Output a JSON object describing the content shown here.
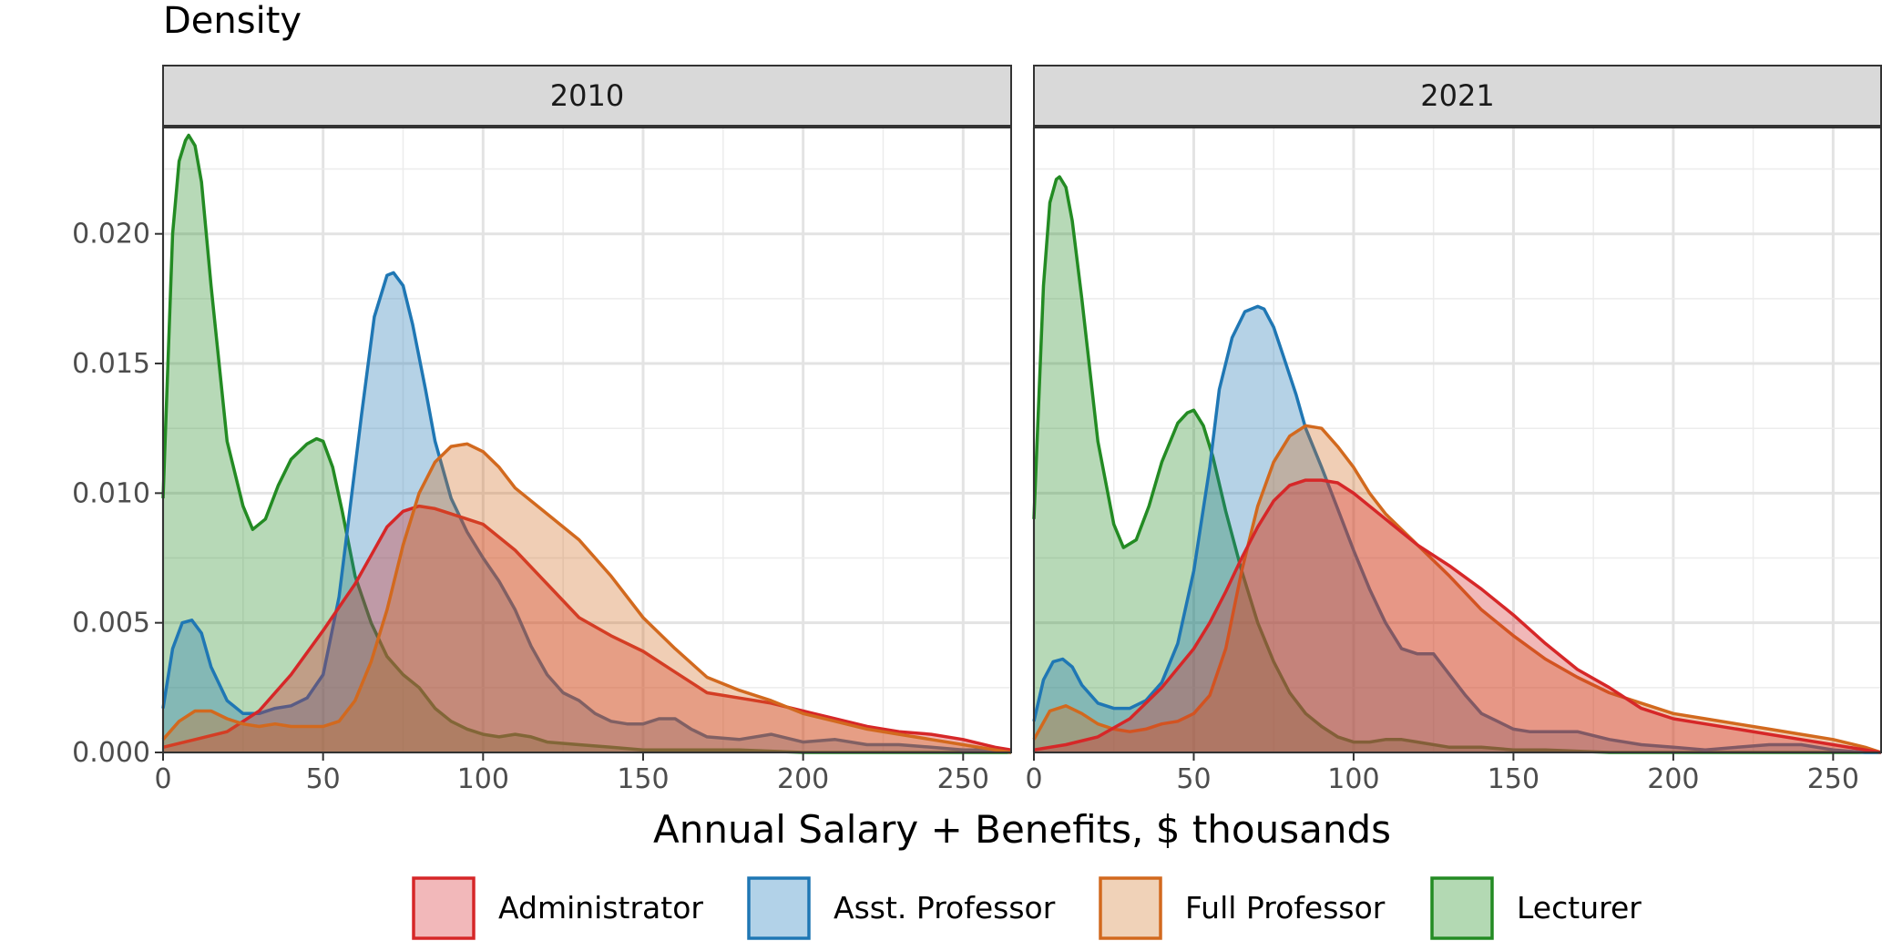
{
  "chart_data": {
    "type": "area",
    "ylabel": "Density",
    "xlabel": "Annual Salary + Benefits, $ thousands",
    "xlim": [
      0,
      265
    ],
    "ylim": [
      0,
      0.0241
    ],
    "x_ticks": [
      0,
      50,
      100,
      150,
      200,
      250
    ],
    "y_ticks": [
      0.0,
      0.005,
      0.01,
      0.015,
      0.02
    ],
    "y_tick_labels": [
      "0.000",
      "0.005",
      "0.010",
      "0.015",
      "0.020"
    ],
    "grid": true,
    "legend_position": "bottom",
    "legend": [
      {
        "name": "Administrator",
        "color": "#d62728",
        "fill": "#f2b8ba"
      },
      {
        "name": "Asst. Professor",
        "color": "#1f77b4",
        "fill": "#b2d2e8"
      },
      {
        "name": "Full Professor",
        "color": "#d2691e",
        "fill": "#f0d2b8"
      },
      {
        "name": "Lecturer",
        "color": "#238b23",
        "fill": "#b3d9b3"
      }
    ],
    "panels": [
      {
        "title": "2010",
        "series": [
          {
            "name": "Lecturer",
            "x": [
              0,
              3,
              5,
              7,
              8,
              10,
              12,
              15,
              20,
              25,
              28,
              32,
              36,
              40,
              45,
              48,
              50,
              53,
              56,
              60,
              65,
              70,
              75,
              80,
              85,
              90,
              95,
              100,
              105,
              110,
              115,
              120,
              130,
              140,
              150,
              160,
              180,
              200,
              220,
              240,
              265
            ],
            "y": [
              0.0098,
              0.02,
              0.0228,
              0.0236,
              0.0238,
              0.0234,
              0.022,
              0.018,
              0.012,
              0.0095,
              0.0086,
              0.009,
              0.0103,
              0.0113,
              0.0119,
              0.0121,
              0.012,
              0.011,
              0.0093,
              0.0068,
              0.005,
              0.0037,
              0.003,
              0.0025,
              0.0017,
              0.0012,
              0.0009,
              0.0007,
              0.0006,
              0.0007,
              0.0006,
              0.0004,
              0.0003,
              0.0002,
              0.0001,
              0.0001,
              0.0001,
              0.0,
              0.0,
              0.0,
              0.0
            ]
          },
          {
            "name": "Asst. Professor",
            "x": [
              0,
              3,
              6,
              9,
              12,
              15,
              20,
              25,
              30,
              35,
              40,
              45,
              50,
              55,
              58,
              62,
              66,
              70,
              72,
              75,
              78,
              82,
              85,
              90,
              95,
              100,
              105,
              110,
              115,
              120,
              125,
              130,
              135,
              140,
              145,
              150,
              155,
              160,
              165,
              170,
              180,
              190,
              200,
              210,
              220,
              230,
              240,
              250,
              260,
              265
            ],
            "y": [
              0.0017,
              0.004,
              0.005,
              0.0051,
              0.0046,
              0.0033,
              0.002,
              0.0015,
              0.0015,
              0.0017,
              0.0018,
              0.0021,
              0.003,
              0.006,
              0.009,
              0.013,
              0.0168,
              0.0184,
              0.0185,
              0.018,
              0.0165,
              0.014,
              0.012,
              0.0098,
              0.0085,
              0.0075,
              0.0066,
              0.0055,
              0.0041,
              0.003,
              0.0023,
              0.002,
              0.0015,
              0.0012,
              0.0011,
              0.0011,
              0.0013,
              0.0013,
              0.0009,
              0.0006,
              0.0005,
              0.0007,
              0.0004,
              0.0005,
              0.0003,
              0.0003,
              0.0002,
              0.0001,
              0.0001,
              0.0
            ]
          },
          {
            "name": "Administrator",
            "x": [
              0,
              10,
              20,
              30,
              40,
              50,
              55,
              60,
              65,
              70,
              75,
              80,
              85,
              90,
              95,
              100,
              110,
              120,
              130,
              140,
              150,
              160,
              170,
              180,
              190,
              200,
              210,
              220,
              230,
              240,
              250,
              260,
              265
            ],
            "y": [
              0.0002,
              0.0005,
              0.0008,
              0.0016,
              0.003,
              0.0047,
              0.0056,
              0.0065,
              0.0076,
              0.0087,
              0.0093,
              0.0095,
              0.0094,
              0.0092,
              0.009,
              0.0088,
              0.0078,
              0.0065,
              0.0052,
              0.0045,
              0.0039,
              0.0031,
              0.0023,
              0.0021,
              0.0019,
              0.0016,
              0.0013,
              0.001,
              0.0008,
              0.0007,
              0.0005,
              0.0002,
              0.0001
            ]
          },
          {
            "name": "Full Professor",
            "x": [
              0,
              5,
              10,
              15,
              20,
              25,
              30,
              35,
              40,
              45,
              50,
              55,
              60,
              65,
              70,
              75,
              80,
              85,
              90,
              95,
              100,
              105,
              110,
              120,
              130,
              140,
              150,
              160,
              170,
              180,
              190,
              200,
              210,
              220,
              230,
              240,
              250,
              260,
              265
            ],
            "y": [
              0.0005,
              0.0012,
              0.0016,
              0.0016,
              0.0013,
              0.0011,
              0.001,
              0.0011,
              0.001,
              0.001,
              0.001,
              0.0012,
              0.002,
              0.0035,
              0.0055,
              0.008,
              0.01,
              0.0112,
              0.0118,
              0.0119,
              0.0116,
              0.011,
              0.0102,
              0.0092,
              0.0082,
              0.0068,
              0.0052,
              0.004,
              0.0029,
              0.0024,
              0.002,
              0.0015,
              0.0012,
              0.0009,
              0.0007,
              0.0005,
              0.0003,
              0.0001,
              0.0
            ]
          }
        ]
      },
      {
        "title": "2021",
        "series": [
          {
            "name": "Lecturer",
            "x": [
              0,
              3,
              5,
              7,
              8,
              10,
              12,
              15,
              20,
              25,
              28,
              32,
              36,
              40,
              45,
              48,
              50,
              53,
              56,
              60,
              65,
              70,
              75,
              80,
              85,
              90,
              95,
              100,
              105,
              110,
              115,
              120,
              130,
              140,
              150,
              160,
              180,
              200,
              220,
              240,
              265
            ],
            "y": [
              0.009,
              0.018,
              0.0212,
              0.0221,
              0.0222,
              0.0218,
              0.0205,
              0.0175,
              0.012,
              0.0088,
              0.0079,
              0.0082,
              0.0095,
              0.0112,
              0.0127,
              0.0131,
              0.0132,
              0.0126,
              0.0114,
              0.0093,
              0.007,
              0.005,
              0.0035,
              0.0023,
              0.0015,
              0.001,
              0.0006,
              0.0004,
              0.0004,
              0.0005,
              0.0005,
              0.0004,
              0.0002,
              0.0002,
              0.0001,
              0.0001,
              0.0,
              0.0,
              0.0,
              0.0,
              0.0
            ]
          },
          {
            "name": "Asst. Professor",
            "x": [
              0,
              3,
              6,
              9,
              12,
              15,
              20,
              25,
              30,
              35,
              40,
              45,
              50,
              55,
              58,
              62,
              66,
              70,
              72,
              75,
              78,
              82,
              85,
              90,
              95,
              100,
              105,
              110,
              115,
              120,
              125,
              130,
              135,
              140,
              145,
              150,
              155,
              160,
              165,
              170,
              180,
              190,
              200,
              210,
              220,
              230,
              240,
              250,
              260,
              265
            ],
            "y": [
              0.0012,
              0.0028,
              0.0035,
              0.0036,
              0.0033,
              0.0026,
              0.0019,
              0.0017,
              0.0017,
              0.002,
              0.0027,
              0.0042,
              0.007,
              0.011,
              0.014,
              0.016,
              0.017,
              0.0172,
              0.0171,
              0.0164,
              0.0153,
              0.0138,
              0.0125,
              0.011,
              0.0094,
              0.0078,
              0.0063,
              0.005,
              0.004,
              0.0038,
              0.0038,
              0.003,
              0.0022,
              0.0015,
              0.0012,
              0.0009,
              0.0008,
              0.0008,
              0.0008,
              0.0008,
              0.0005,
              0.0003,
              0.0002,
              0.0001,
              0.0002,
              0.0003,
              0.0003,
              0.0001,
              0.0,
              0.0
            ]
          },
          {
            "name": "Full Professor",
            "x": [
              0,
              5,
              10,
              15,
              20,
              25,
              30,
              35,
              40,
              45,
              50,
              55,
              60,
              65,
              70,
              75,
              80,
              85,
              90,
              95,
              100,
              105,
              110,
              120,
              130,
              140,
              150,
              160,
              170,
              180,
              190,
              200,
              210,
              220,
              230,
              240,
              250,
              260,
              265
            ],
            "y": [
              0.0005,
              0.0016,
              0.0018,
              0.0015,
              0.0011,
              0.0009,
              0.0008,
              0.0009,
              0.0011,
              0.0012,
              0.0015,
              0.0022,
              0.004,
              0.007,
              0.0095,
              0.0112,
              0.0122,
              0.0126,
              0.0125,
              0.0118,
              0.011,
              0.01,
              0.0092,
              0.008,
              0.0068,
              0.0055,
              0.0045,
              0.0036,
              0.0029,
              0.0023,
              0.0019,
              0.0015,
              0.0013,
              0.0011,
              0.0009,
              0.0007,
              0.0005,
              0.0002,
              0.0
            ]
          },
          {
            "name": "Administrator",
            "x": [
              0,
              10,
              20,
              30,
              40,
              50,
              55,
              60,
              65,
              70,
              75,
              80,
              85,
              90,
              95,
              100,
              110,
              120,
              130,
              140,
              150,
              160,
              170,
              180,
              190,
              200,
              210,
              220,
              230,
              240,
              250,
              260,
              265
            ],
            "y": [
              0.0001,
              0.0003,
              0.0006,
              0.0013,
              0.0025,
              0.004,
              0.005,
              0.0062,
              0.0075,
              0.0087,
              0.0097,
              0.0103,
              0.0105,
              0.0105,
              0.0104,
              0.01,
              0.009,
              0.008,
              0.0072,
              0.0063,
              0.0053,
              0.0042,
              0.0032,
              0.0025,
              0.0017,
              0.0013,
              0.0011,
              0.0009,
              0.0007,
              0.0005,
              0.0003,
              0.0001,
              0.0
            ]
          }
        ]
      }
    ]
  }
}
